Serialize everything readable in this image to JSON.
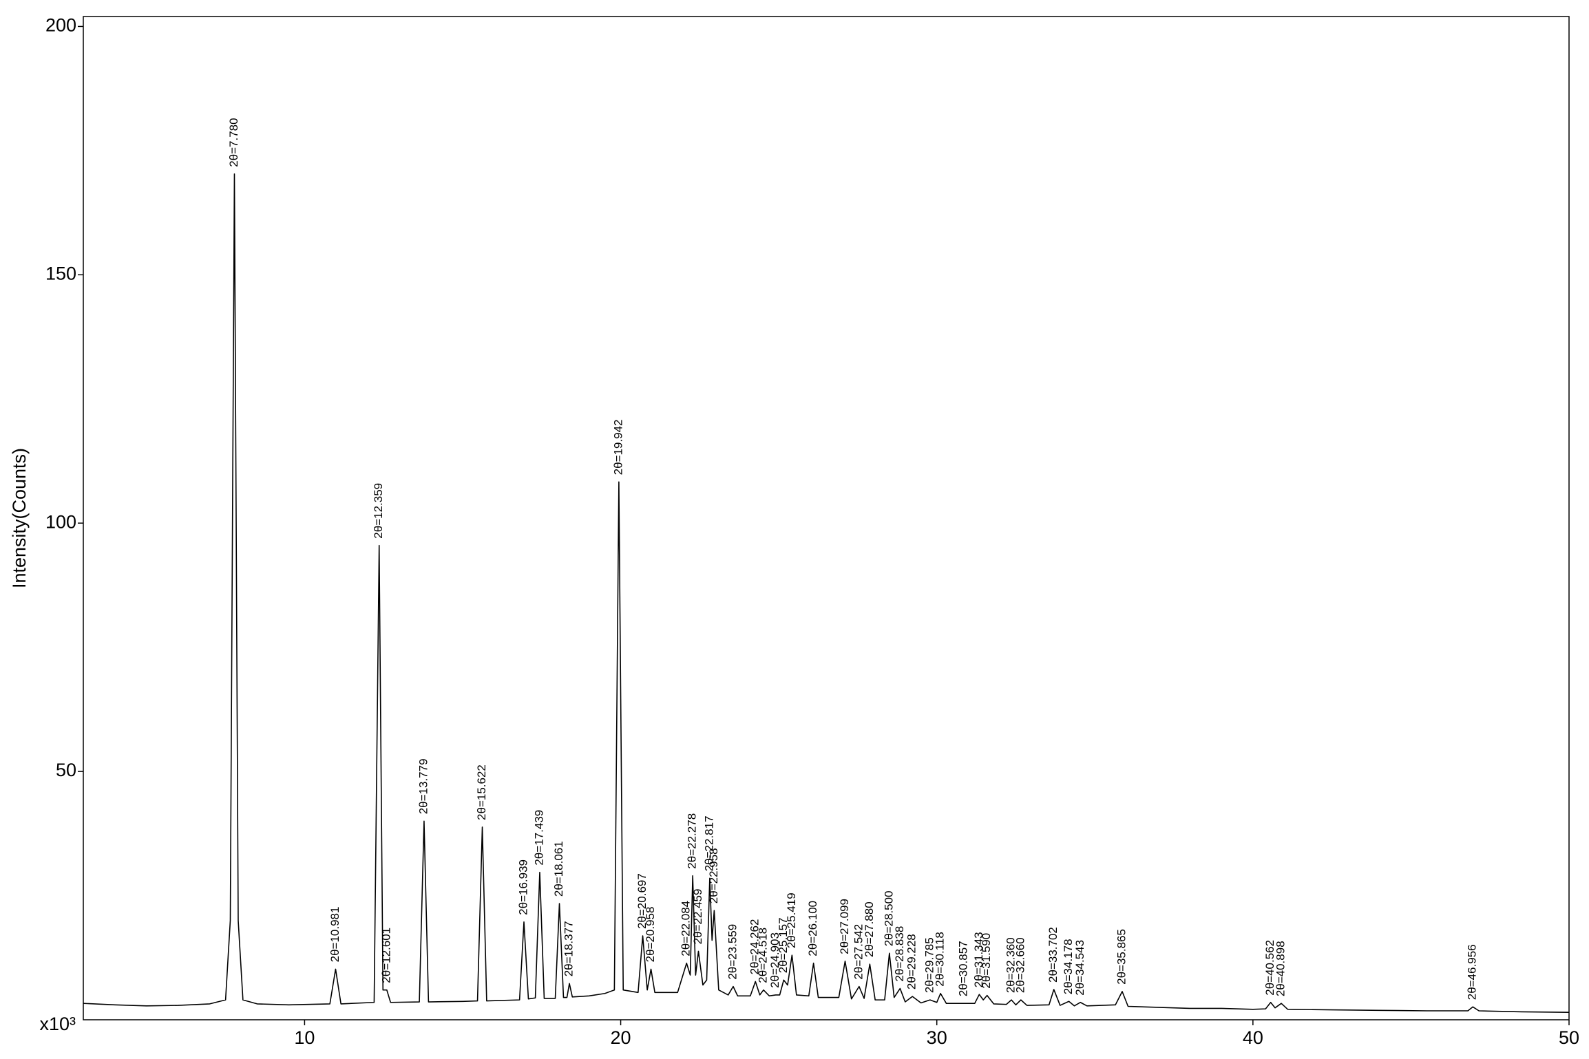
{
  "chart_data": {
    "type": "line",
    "y_label": "Intensity(Counts)",
    "y_unit_label": "x10³",
    "color": "#000000",
    "xlim": [
      3,
      50
    ],
    "xticks": [
      10,
      20,
      30,
      40,
      50
    ],
    "ylim": [
      0,
      202
    ],
    "yticks": [
      50,
      100,
      150,
      200
    ],
    "x": [
      3.0,
      4.0,
      5.0,
      6.0,
      7.0,
      7.5,
      7.65,
      7.78,
      7.9,
      8.05,
      8.5,
      9.5,
      10.8,
      10.981,
      11.15,
      12.2,
      12.359,
      12.48,
      12.601,
      12.72,
      13.63,
      13.779,
      13.92,
      15.0,
      15.47,
      15.622,
      15.76,
      16.8,
      16.939,
      17.08,
      17.3,
      17.439,
      17.58,
      17.93,
      18.061,
      18.19,
      18.3,
      18.377,
      18.47,
      19.0,
      19.5,
      19.8,
      19.942,
      20.08,
      20.55,
      20.697,
      20.84,
      20.958,
      21.08,
      21.8,
      22.084,
      22.2,
      22.278,
      22.37,
      22.459,
      22.6,
      22.72,
      22.817,
      22.89,
      22.958,
      23.1,
      23.4,
      23.559,
      23.7,
      24.1,
      24.262,
      24.4,
      24.518,
      24.7,
      24.903,
      25.03,
      25.157,
      25.28,
      25.419,
      25.56,
      25.95,
      26.1,
      26.25,
      26.9,
      27.099,
      27.3,
      27.542,
      27.7,
      27.88,
      28.05,
      28.35,
      28.5,
      28.65,
      28.838,
      29.0,
      29.228,
      29.5,
      29.785,
      30.0,
      30.118,
      30.3,
      30.857,
      31.2,
      31.343,
      31.47,
      31.59,
      31.8,
      32.2,
      32.36,
      32.5,
      32.66,
      32.85,
      33.55,
      33.702,
      33.9,
      34.178,
      34.35,
      34.543,
      34.75,
      35.65,
      35.865,
      36.05,
      37.0,
      38.0,
      39.0,
      40.0,
      40.4,
      40.562,
      40.7,
      40.898,
      41.1,
      42.5,
      44.0,
      45.5,
      46.8,
      46.956,
      47.15,
      48.5,
      50.0
    ],
    "values": [
      3.3,
      3.0,
      2.8,
      2.9,
      3.2,
      4.0,
      20,
      170.3,
      20,
      4,
      3.2,
      3.0,
      3.2,
      10.2,
      3.2,
      3.5,
      95.5,
      6,
      6,
      3.5,
      3.6,
      40,
      3.6,
      3.7,
      3.8,
      38.8,
      3.8,
      4.0,
      19.7,
      4.2,
      4.4,
      29.7,
      4.3,
      4.3,
      23.4,
      4.5,
      4.5,
      7.3,
      4.6,
      4.8,
      5.3,
      6,
      108.3,
      6,
      5.5,
      16.9,
      6,
      10.2,
      5.5,
      5.5,
      11.4,
      9,
      29,
      9,
      13.8,
      7,
      8,
      28.5,
      16,
      22,
      6,
      5,
      6.7,
      4.8,
      4.8,
      7.7,
      5,
      6,
      4.8,
      5,
      5,
      8,
      7,
      13,
      5,
      4.8,
      11.4,
      4.5,
      4.5,
      11.8,
      4.2,
      6.7,
      4.3,
      11.2,
      4,
      4,
      13.4,
      4.5,
      6.3,
      3.6,
      4.7,
      3.4,
      4,
      3.5,
      5.3,
      3.3,
      3.3,
      3.3,
      5.1,
      4,
      4.9,
      3.2,
      3.1,
      4,
      3,
      4,
      2.9,
      3,
      6.1,
      2.9,
      3.7,
      2.8,
      3.5,
      2.8,
      3.0,
      5.7,
      2.7,
      2.5,
      2.3,
      2.3,
      2.1,
      2.2,
      3.5,
      2.4,
      3.3,
      2.1,
      2.0,
      1.9,
      1.8,
      1.8,
      2.6,
      1.8,
      1.6,
      1.5
    ],
    "peaks": [
      {
        "label": "2θ=7.780",
        "x": 7.78,
        "y": 170.3
      },
      {
        "label": "2θ=10.981",
        "x": 10.981,
        "y": 10.2
      },
      {
        "label": "2θ=12.359",
        "x": 12.359,
        "y": 95.5
      },
      {
        "label": "2θ=12.601",
        "x": 12.601,
        "y": 6
      },
      {
        "label": "2θ=13.779",
        "x": 13.779,
        "y": 40
      },
      {
        "label": "2θ=15.622",
        "x": 15.622,
        "y": 38.8
      },
      {
        "label": "2θ=16.939",
        "x": 16.939,
        "y": 19.7
      },
      {
        "label": "2θ=17.439",
        "x": 17.439,
        "y": 29.7
      },
      {
        "label": "2θ=18.061",
        "x": 18.061,
        "y": 23.4
      },
      {
        "label": "2θ=18.377",
        "x": 18.377,
        "y": 7.3
      },
      {
        "label": "2θ=19.942",
        "x": 19.942,
        "y": 108.3
      },
      {
        "label": "2θ=20.697",
        "x": 20.697,
        "y": 16.9
      },
      {
        "label": "2θ=20.958",
        "x": 20.958,
        "y": 10.2
      },
      {
        "label": "2θ=22.084",
        "x": 22.084,
        "y": 11.4
      },
      {
        "label": "2θ=22.278",
        "x": 22.278,
        "y": 29
      },
      {
        "label": "2θ=22.459",
        "x": 22.459,
        "y": 13.8
      },
      {
        "label": "2θ=22.817",
        "x": 22.817,
        "y": 28.5
      },
      {
        "label": "2θ=22.958",
        "x": 22.958,
        "y": 22
      },
      {
        "label": "2θ=23.559",
        "x": 23.559,
        "y": 6.7
      },
      {
        "label": "2θ=24.262",
        "x": 24.262,
        "y": 7.7
      },
      {
        "label": "2θ=24.518",
        "x": 24.518,
        "y": 6
      },
      {
        "label": "2θ=24.903",
        "x": 24.903,
        "y": 5
      },
      {
        "label": "2θ=25.157",
        "x": 25.157,
        "y": 8
      },
      {
        "label": "2θ=25.419",
        "x": 25.419,
        "y": 13
      },
      {
        "label": "2θ=26.100",
        "x": 26.1,
        "y": 11.4
      },
      {
        "label": "2θ=27.099",
        "x": 27.099,
        "y": 11.8
      },
      {
        "label": "2θ=27.542",
        "x": 27.542,
        "y": 6.7
      },
      {
        "label": "2θ=27.880",
        "x": 27.88,
        "y": 11.2
      },
      {
        "label": "2θ=28.500",
        "x": 28.5,
        "y": 13.4
      },
      {
        "label": "2θ=28.838",
        "x": 28.838,
        "y": 6.3
      },
      {
        "label": "2θ=29.228",
        "x": 29.228,
        "y": 4.7
      },
      {
        "label": "2θ=29.785",
        "x": 29.785,
        "y": 4
      },
      {
        "label": "2θ=30.118",
        "x": 30.118,
        "y": 5.3
      },
      {
        "label": "2θ=30.857",
        "x": 30.857,
        "y": 3.3
      },
      {
        "label": "2θ=31.343",
        "x": 31.343,
        "y": 5.1
      },
      {
        "label": "2θ=31.590",
        "x": 31.59,
        "y": 4.9
      },
      {
        "label": "2θ=32.360",
        "x": 32.36,
        "y": 4
      },
      {
        "label": "2θ=32.660",
        "x": 32.66,
        "y": 4
      },
      {
        "label": "2θ=33.702",
        "x": 33.702,
        "y": 6.1
      },
      {
        "label": "2θ=34.178",
        "x": 34.178,
        "y": 3.7
      },
      {
        "label": "2θ=34.543",
        "x": 34.543,
        "y": 3.5
      },
      {
        "label": "2θ=35.865",
        "x": 35.865,
        "y": 5.7
      },
      {
        "label": "2θ=40.562",
        "x": 40.562,
        "y": 3.5
      },
      {
        "label": "2θ=40.898",
        "x": 40.898,
        "y": 3.3
      },
      {
        "label": "2θ=46.956",
        "x": 46.956,
        "y": 2.6
      }
    ]
  }
}
